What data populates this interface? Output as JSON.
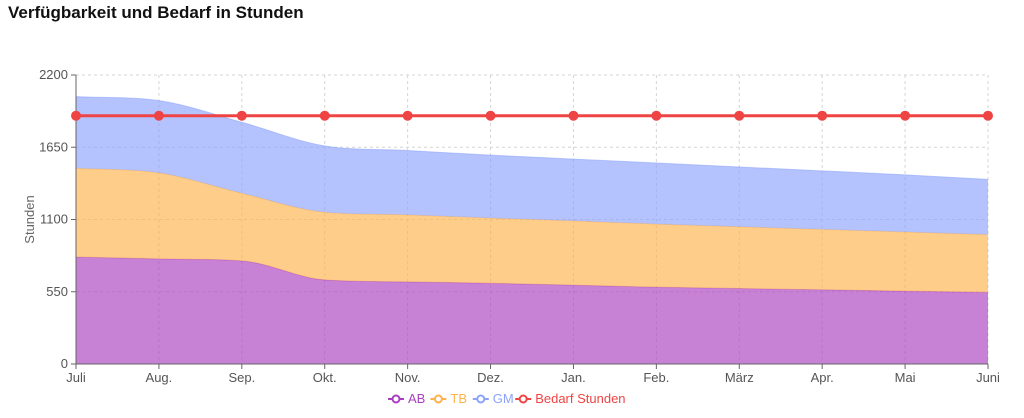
{
  "title": "Verfügbarkeit und Bedarf in Stunden",
  "chart_data": {
    "type": "area",
    "stacked": true,
    "categories": [
      "Juli",
      "Aug.",
      "Sep.",
      "Okt.",
      "Nov.",
      "Dez.",
      "Jan.",
      "Feb.",
      "März",
      "Apr.",
      "Mai",
      "Juni"
    ],
    "ylabel": "Stunden",
    "ylim": [
      0,
      2200
    ],
    "yticks": [
      0,
      550,
      1100,
      1650,
      2200
    ],
    "grid": true,
    "legend_position": "bottom",
    "series": [
      {
        "name": "AB",
        "kind": "area",
        "color": "#a93fc0",
        "values": [
          815,
          800,
          785,
          640,
          625,
          615,
          600,
          585,
          575,
          565,
          555,
          545
        ]
      },
      {
        "name": "TB",
        "kind": "area",
        "color": "#ffb24b",
        "values": [
          675,
          655,
          515,
          515,
          510,
          495,
          490,
          480,
          470,
          460,
          450,
          440
        ]
      },
      {
        "name": "GM",
        "kind": "area",
        "color": "#8ca3fc",
        "values": [
          545,
          550,
          540,
          505,
          490,
          480,
          470,
          465,
          455,
          445,
          435,
          420
        ]
      },
      {
        "name": "Bedarf Stunden",
        "kind": "line",
        "color": "#ef4444",
        "values": [
          1890,
          1890,
          1890,
          1890,
          1890,
          1890,
          1890,
          1890,
          1890,
          1890,
          1890,
          1890
        ]
      }
    ]
  }
}
